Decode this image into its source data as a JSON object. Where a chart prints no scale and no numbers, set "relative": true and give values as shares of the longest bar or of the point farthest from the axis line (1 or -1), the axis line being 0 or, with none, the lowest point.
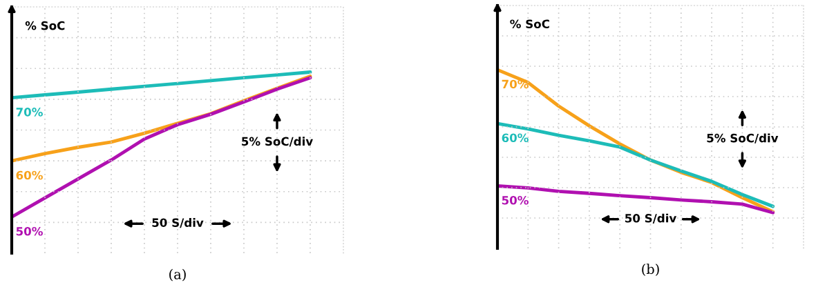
{
  "chart_data": [
    {
      "type": "line",
      "title": "(a)",
      "ylabel": "% SoC",
      "relative": true,
      "grid": true,
      "tick_labels": false,
      "legend": false,
      "categories": [
        null,
        null,
        null,
        null,
        null,
        null,
        null,
        null,
        null,
        null
      ],
      "series": [
        {
          "name": "70%",
          "color": "#1dbcb8",
          "values": [
            0.823,
            0.843,
            0.862,
            0.882,
            0.902,
            0.921,
            0.941,
            0.961,
            0.98,
            1.0
          ]
        },
        {
          "name": "60%",
          "color": "#f7a11a",
          "values": [
            0.387,
            0.438,
            0.481,
            0.517,
            0.578,
            0.646,
            0.713,
            0.802,
            0.888,
            0.971
          ]
        },
        {
          "name": "50%",
          "color": "#b010b0",
          "values": [
            0.0,
            0.132,
            0.263,
            0.393,
            0.538,
            0.637,
            0.709,
            0.794,
            0.882,
            0.961
          ]
        }
      ],
      "annotations": [
        "5% SoC/div",
        "50 S/div"
      ]
    },
    {
      "type": "line",
      "title": "(b)",
      "ylabel": "% SoC",
      "relative": true,
      "grid": true,
      "tick_labels": false,
      "legend": false,
      "categories": [
        null,
        null,
        null,
        null,
        null,
        null,
        null,
        null,
        null,
        null
      ],
      "series": [
        {
          "name": "70%",
          "color": "#f7a11a",
          "values": [
            1.0,
            0.911,
            0.746,
            0.608,
            0.481,
            0.368,
            0.282,
            0.211,
            0.105,
            0.006
          ]
        },
        {
          "name": "60%",
          "color": "#1dbcb8",
          "values": [
            0.624,
            0.586,
            0.541,
            0.503,
            0.459,
            0.368,
            0.292,
            0.219,
            0.127,
            0.044
          ]
        },
        {
          "name": "50%",
          "color": "#b010b0",
          "values": [
            0.187,
            0.173,
            0.149,
            0.135,
            0.119,
            0.105,
            0.089,
            0.076,
            0.06,
            0.0
          ]
        }
      ],
      "annotations": [
        "5% SoC/div",
        "50 S/div"
      ]
    }
  ]
}
